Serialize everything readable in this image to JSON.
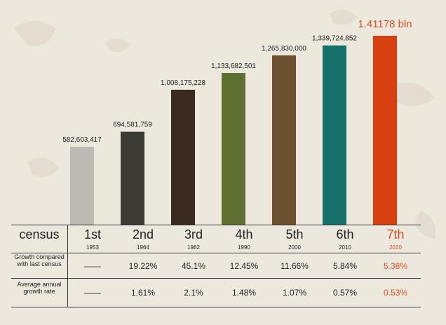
{
  "chart_data": {
    "type": "bar",
    "categories": [
      "1st",
      "2nd",
      "3rd",
      "4th",
      "5th",
      "6th",
      "7th"
    ],
    "values": [
      582603417,
      694581759,
      1008175228,
      1133682501,
      1265830000,
      1339724852,
      1411780000
    ],
    "data_labels": [
      "582,603,417",
      "694,581,759",
      "1,008,175,228",
      "1,133,682,501",
      "1,265,830,000",
      "1,339,724,852",
      "1.41178 bln"
    ],
    "colors": [
      "#bdbab4",
      "#3b3a34",
      "#3a2a20",
      "#5e7030",
      "#6b5130",
      "#16706b",
      "#d8400f"
    ],
    "highlight_color": "#d94f1e",
    "ylim": [
      0,
      1411780000
    ]
  },
  "table": {
    "header_label": "census",
    "censuses": [
      {
        "ordinal": "1st",
        "year": "1953",
        "growth": "——",
        "annual": "——"
      },
      {
        "ordinal": "2nd",
        "year": "1964",
        "growth": "19.22%",
        "annual": "1.61%"
      },
      {
        "ordinal": "3rd",
        "year": "1982",
        "growth": "45.1%",
        "annual": "2.1%"
      },
      {
        "ordinal": "4th",
        "year": "1990",
        "growth": "12.45%",
        "annual": "1.48%"
      },
      {
        "ordinal": "5th",
        "year": "2000",
        "growth": "11.66%",
        "annual": "1.07%"
      },
      {
        "ordinal": "6th",
        "year": "2010",
        "growth": "5.84%",
        "annual": "0.57%"
      },
      {
        "ordinal": "7th",
        "year": "2020",
        "growth": "5.38%",
        "annual": "0.53%"
      }
    ],
    "row_labels": {
      "growth": "Growth compared with last census",
      "annual": "Average annual growth rate"
    }
  }
}
